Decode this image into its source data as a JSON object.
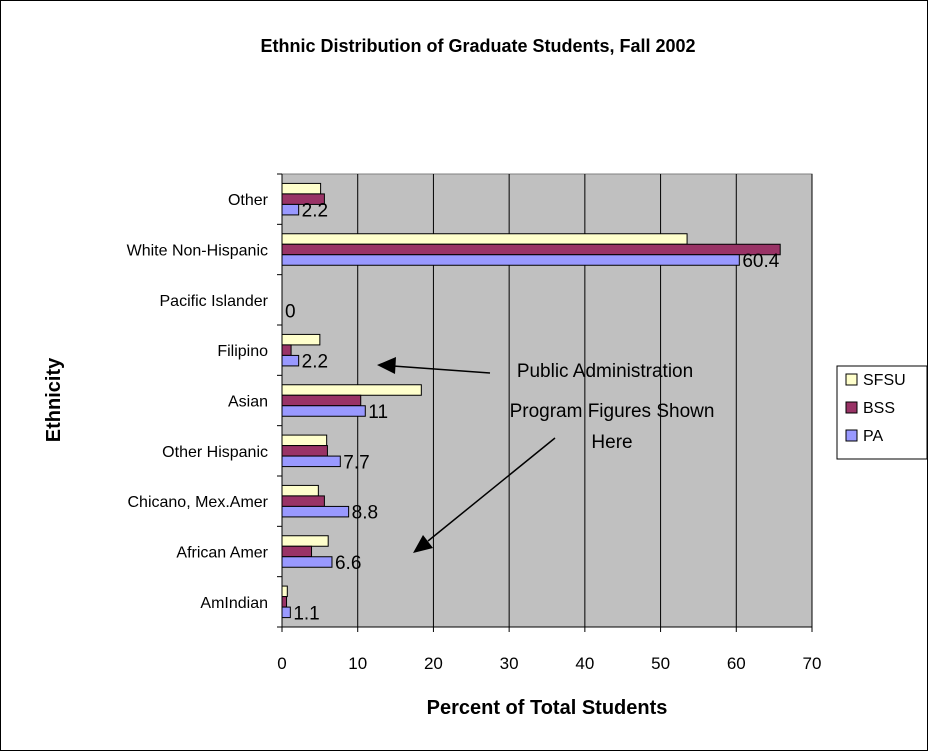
{
  "chart_data": {
    "type": "bar",
    "orientation": "horizontal",
    "title": "Ethnic Distribution of Graduate Students, Fall 2002",
    "xlabel": "Percent of Total Students",
    "ylabel": "Ethnicity",
    "xlim": [
      0,
      70
    ],
    "xticks": [
      "0",
      "10",
      "20",
      "30",
      "40",
      "50",
      "60",
      "70"
    ],
    "grid": true,
    "legend_position": "right",
    "categories": [
      "AmIndian",
      "African Amer",
      "Chicano, Mex.Amer",
      "Other Hispanic",
      "Asian",
      "Filipino",
      "Pacific Islander",
      "White Non-Hispanic",
      "Other"
    ],
    "series": [
      {
        "name": "SFSU",
        "color": "#FFFFCC",
        "values": [
          0.7,
          6.1,
          4.8,
          5.9,
          18.4,
          5.0,
          0,
          53.5,
          5.1
        ]
      },
      {
        "name": "BSS",
        "color": "#993366",
        "values": [
          0.6,
          3.9,
          5.6,
          6.0,
          10.4,
          1.2,
          0,
          65.8,
          5.6
        ]
      },
      {
        "name": "PA",
        "color": "#9999FF",
        "values": [
          1.1,
          6.6,
          8.8,
          7.7,
          11,
          2.2,
          0,
          60.4,
          2.2
        ]
      }
    ],
    "data_labels": {
      "series": "PA",
      "labels": [
        "1.1",
        "6.6",
        "8.8",
        "7.7",
        "11",
        "2.2",
        "0",
        "60.4",
        "2.2"
      ]
    },
    "annotation": {
      "lines": [
        "Public Administration",
        "Program Figures Shown",
        "Here"
      ]
    },
    "colors": {
      "plot_background": "#C0C0C0",
      "gridline": "#000000"
    }
  }
}
